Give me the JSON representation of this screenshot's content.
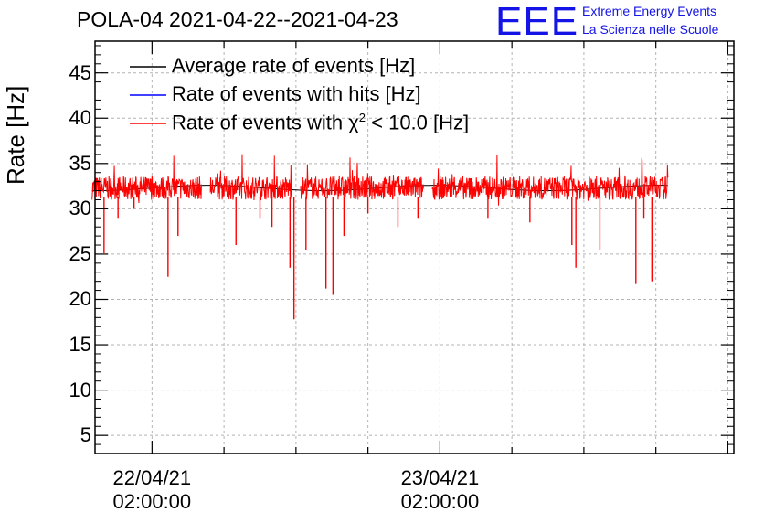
{
  "title": "POLA-04 2021-04-22--2021-04-23",
  "logo": {
    "mark": "EEE",
    "line1": "Extreme Energy Events",
    "line2": "La Scienza nelle Scuole"
  },
  "chart_data": {
    "type": "line",
    "ylabel": "Rate [Hz]",
    "xlabel": "",
    "ylim": [
      3,
      48.5
    ],
    "xlim_hours": [
      -4.75,
      48.5
    ],
    "yticks": [
      "5",
      "10",
      "15",
      "20",
      "25",
      "30",
      "35",
      "40",
      "45"
    ],
    "xticks": [
      {
        "date": "22/04/21",
        "time": "02:00:00"
      },
      {
        "date": "23/04/21",
        "time": "02:00:00"
      }
    ],
    "grid": true,
    "legend_position": "top-left",
    "legend": [
      {
        "name": "Average rate of events [Hz]",
        "color": "#000000"
      },
      {
        "name": "Rate of events with hits [Hz]",
        "color": "#0000ff"
      },
      {
        "name_prefix": "Rate of events with ",
        "symbol": "χ",
        "superscript": "2",
        "name_suffix": " < 10.0 [Hz]",
        "color": "#ff0000"
      }
    ],
    "series": [
      {
        "name": "Average rate of events [Hz]",
        "color": "#000000",
        "mean_level": 32.3
      },
      {
        "name": "Rate of events with hits [Hz]",
        "color": "#0000ff",
        "mean_level": 32.3
      },
      {
        "name": "Rate of events with χ2 < 10.0 [Hz]",
        "color": "#ff0000",
        "mean_level": 32.3,
        "x_start_datetime": "2021-04-21 21:00",
        "x_end_datetime": "2021-04-23 21:00",
        "gaps_datetime": [
          "2021-04-22 06:30",
          "2021-04-22 14:00",
          "2021-04-23 01:00"
        ],
        "dips": [
          {
            "x_datetime": "2021-04-21 22:00",
            "y": 25.1
          },
          {
            "x_datetime": "2021-04-21 23:10",
            "y": 29.0
          },
          {
            "x_datetime": "2021-04-22 00:30",
            "y": 30.0
          },
          {
            "x_datetime": "2021-04-22 03:20",
            "y": 22.5
          },
          {
            "x_datetime": "2021-04-22 04:10",
            "y": 27.0
          },
          {
            "x_datetime": "2021-04-22 09:00",
            "y": 26.0
          },
          {
            "x_datetime": "2021-04-22 11:00",
            "y": 29.0
          },
          {
            "x_datetime": "2021-04-22 12:00",
            "y": 28.0
          },
          {
            "x_datetime": "2021-04-22 13:30",
            "y": 23.5
          },
          {
            "x_datetime": "2021-04-22 13:50",
            "y": 17.8
          },
          {
            "x_datetime": "2021-04-22 14:50",
            "y": 25.5
          },
          {
            "x_datetime": "2021-04-22 16:30",
            "y": 21.2
          },
          {
            "x_datetime": "2021-04-22 17:05",
            "y": 20.5
          },
          {
            "x_datetime": "2021-04-22 18:00",
            "y": 27.0
          },
          {
            "x_datetime": "2021-04-22 20:00",
            "y": 29.5
          },
          {
            "x_datetime": "2021-04-22 22:30",
            "y": 28.0
          },
          {
            "x_datetime": "2021-04-23 00:10",
            "y": 29.0
          },
          {
            "x_datetime": "2021-04-23 06:00",
            "y": 29.0
          },
          {
            "x_datetime": "2021-04-23 09:30",
            "y": 28.5
          },
          {
            "x_datetime": "2021-04-23 13:00",
            "y": 26.0
          },
          {
            "x_datetime": "2021-04-23 13:20",
            "y": 23.5
          },
          {
            "x_datetime": "2021-04-23 15:20",
            "y": 25.5
          },
          {
            "x_datetime": "2021-04-23 18:20",
            "y": 21.7
          },
          {
            "x_datetime": "2021-04-23 19:00",
            "y": 29.0
          },
          {
            "x_datetime": "2021-04-23 19:40",
            "y": 22.0
          }
        ]
      }
    ]
  }
}
